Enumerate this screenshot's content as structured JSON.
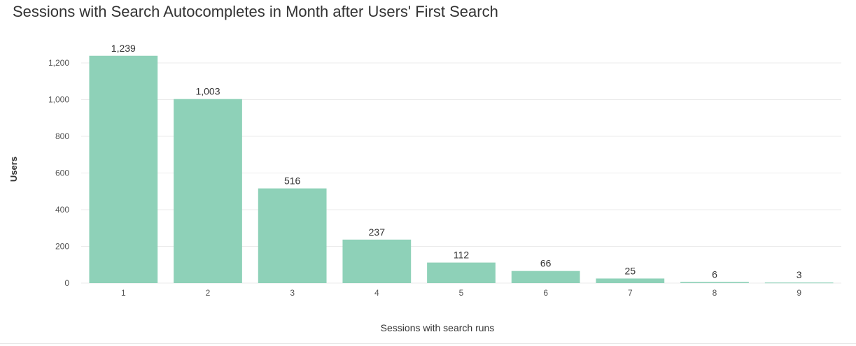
{
  "chart_data": {
    "type": "bar",
    "title": "Sessions with Search Autocompletes in Month after Users' First Search",
    "xlabel": "Sessions with search runs",
    "ylabel": "Users",
    "categories": [
      "1",
      "2",
      "3",
      "4",
      "5",
      "6",
      "7",
      "8",
      "9"
    ],
    "values": [
      1239,
      1003,
      516,
      237,
      112,
      66,
      25,
      6,
      3
    ],
    "data_labels": [
      "1,239",
      "1,003",
      "516",
      "237",
      "112",
      "66",
      "25",
      "6",
      "3"
    ],
    "ylim": [
      0,
      1200
    ],
    "yticks": [
      0,
      200,
      400,
      600,
      800,
      1000,
      1200
    ],
    "ytick_labels": [
      "0",
      "200",
      "400",
      "600",
      "800",
      "1,000",
      "1,200"
    ],
    "grid": true,
    "legend": "none",
    "colors": {
      "bar": "#8ed1b8",
      "grid": "#ebebeb",
      "text": "#333333",
      "tick_text": "#555555"
    }
  }
}
